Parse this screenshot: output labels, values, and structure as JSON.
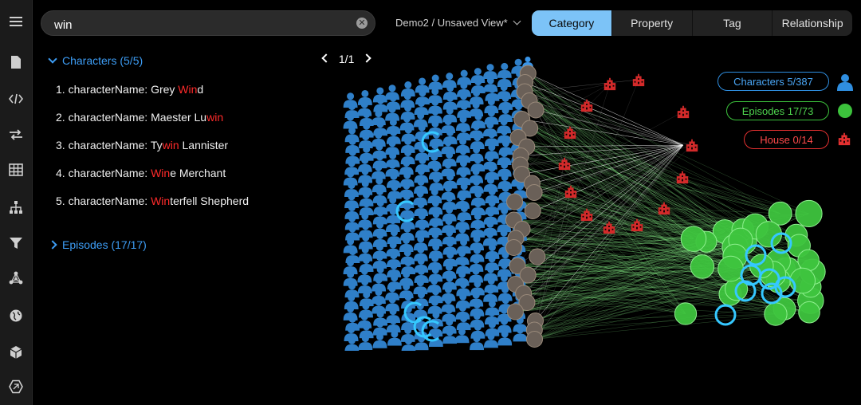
{
  "sidebar": {
    "items": [
      {
        "name": "menu-icon"
      },
      {
        "name": "document-icon"
      },
      {
        "name": "code-icon"
      },
      {
        "name": "swap-icon"
      },
      {
        "name": "table-icon"
      },
      {
        "name": "hierarchy-icon"
      },
      {
        "name": "filter-icon"
      },
      {
        "name": "network-icon"
      },
      {
        "name": "globe-icon"
      },
      {
        "name": "cube-icon"
      },
      {
        "name": "hexagon-icon"
      }
    ]
  },
  "search": {
    "value": "win",
    "clear_icon": "clear-icon"
  },
  "view": {
    "label": "Demo2 / Unsaved View*"
  },
  "tabs": [
    {
      "label": "Category",
      "active": true
    },
    {
      "label": "Property",
      "active": false
    },
    {
      "label": "Tag",
      "active": false
    },
    {
      "label": "Relationship",
      "active": false
    }
  ],
  "results": {
    "characters_header": "Characters (5/5)",
    "episodes_header": "Episodes (17/17)",
    "items": [
      {
        "num": "1.",
        "key": "characterName:",
        "pre": "Grey ",
        "hl": "Win",
        "post": "d"
      },
      {
        "num": "2.",
        "key": "characterName:",
        "pre": "Maester Lu",
        "hl": "win",
        "post": ""
      },
      {
        "num": "3.",
        "key": "characterName:",
        "pre": "Ty",
        "hl": "win",
        "post": " Lannister"
      },
      {
        "num": "4.",
        "key": "characterName:",
        "pre": " ",
        "hl": "Win",
        "post": "e Merchant"
      },
      {
        "num": "5.",
        "key": "characterName:",
        "pre": " ",
        "hl": "Win",
        "post": "terfell Shepherd"
      }
    ]
  },
  "pager": {
    "label": "1/1"
  },
  "legend": [
    {
      "label": "Characters 5/387",
      "color": "#2f8ee0",
      "icon": "person-icon"
    },
    {
      "label": "Episodes 17/73",
      "color": "#3cc23c",
      "icon": "circle-icon"
    },
    {
      "label": "House 0/14",
      "color": "#e23030",
      "icon": "building-icon"
    }
  ],
  "colors": {
    "accent": "#3d9df5",
    "character": "#2f7fc8",
    "episode": "#3ec43e",
    "house": "#d32a2a",
    "highlight": "#ff2a2a"
  }
}
